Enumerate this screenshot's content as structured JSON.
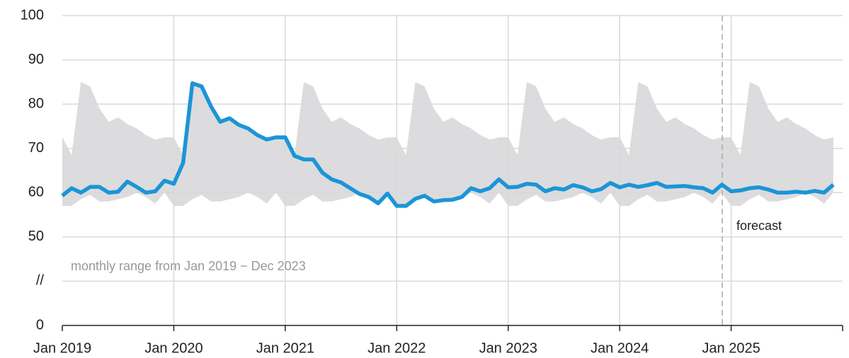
{
  "chart_data": {
    "type": "line",
    "categories": [
      "Jan 2019",
      null,
      null,
      null,
      null,
      null,
      null,
      null,
      null,
      null,
      null,
      null,
      "Jan 2020",
      null,
      null,
      null,
      null,
      null,
      null,
      null,
      null,
      null,
      null,
      null,
      "Jan 2021",
      null,
      null,
      null,
      null,
      null,
      null,
      null,
      null,
      null,
      null,
      null,
      "Jan 2022",
      null,
      null,
      null,
      null,
      null,
      null,
      null,
      null,
      null,
      null,
      null,
      "Jan 2023",
      null,
      null,
      null,
      null,
      null,
      null,
      null,
      null,
      null,
      null,
      null,
      "Jan 2024",
      null,
      null,
      null,
      null,
      null,
      null,
      null,
      null,
      null,
      null,
      null,
      "Jan 2025",
      null,
      null,
      null,
      null,
      null,
      null,
      null,
      null,
      null,
      null,
      null
    ],
    "series": [
      {
        "color": "#1b95d7",
        "values": [
          59.3,
          61,
          60,
          61.3,
          61.3,
          60,
          60.2,
          62.5,
          61.3,
          60,
          60.3,
          62.7,
          62,
          66.7,
          84.7,
          84,
          79.5,
          76,
          76.8,
          75.3,
          74.5,
          73,
          72,
          72.5,
          72.5,
          68.3,
          67.5,
          67.5,
          64.5,
          63,
          62.3,
          61,
          59.7,
          59,
          57.6,
          59.8,
          57,
          57,
          58.6,
          59.3,
          58,
          58.3,
          58.4,
          59,
          61,
          60.3,
          61,
          63,
          61.2,
          61.3,
          62,
          61.8,
          60.3,
          61,
          60.7,
          61.7,
          61.2,
          60.3,
          60.8,
          62.2,
          61.2,
          61.8,
          61.3,
          61.7,
          62.2,
          61.3,
          61.4,
          61.5,
          61.2,
          61,
          60,
          61.8,
          60.3,
          60.5,
          61,
          61.2,
          60.7,
          60,
          60,
          60.2,
          60,
          60.4,
          60,
          61.8
        ]
      }
    ],
    "range": {
      "color": "#dcdcde",
      "upper": [
        72.5,
        68.5,
        85,
        84,
        79,
        76,
        77,
        75.5,
        74.5,
        73,
        72,
        72.5
      ],
      "lower": [
        57,
        57,
        58.5,
        59.5,
        58,
        58,
        58.5,
        59,
        60,
        59,
        57.5,
        60
      ]
    },
    "ylim": [
      0,
      100
    ],
    "yticks": [
      0,
      {
        "value": 25,
        "label": "//"
      },
      50,
      60,
      70,
      80,
      90,
      100
    ],
    "grid": true,
    "annotations": [
      "monthly range from Jan 2019 − Dec 2023",
      "forecast"
    ]
  }
}
